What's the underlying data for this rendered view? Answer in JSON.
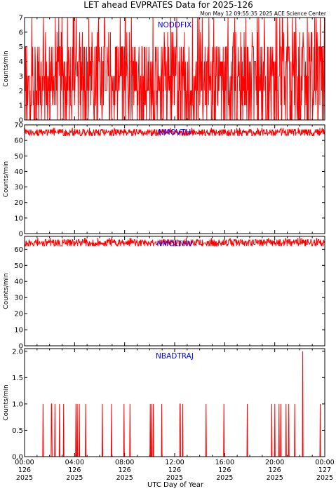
{
  "title": "LET ahead EVPRATES Data for 2025-126",
  "timestamp": "Mon May 12 09:55:35 2025 ACE Science Center",
  "xlabel": "UTC Day of Year",
  "x_ticks": [
    {
      "time": "00:00",
      "doy": "126",
      "year": "2025"
    },
    {
      "time": "04:00",
      "doy": "126",
      "year": "2025"
    },
    {
      "time": "08:00",
      "doy": "126",
      "year": "2025"
    },
    {
      "time": "12:00",
      "doy": "126",
      "year": "2025"
    },
    {
      "time": "16:00",
      "doy": "126",
      "year": "2025"
    },
    {
      "time": "20:00",
      "doy": "126",
      "year": "2025"
    },
    {
      "time": "00:00",
      "doy": "127",
      "year": "2025"
    }
  ],
  "colors": {
    "data": "#ff0000",
    "label": "#0000ff",
    "axis": "#000000"
  },
  "chart_data": [
    {
      "type": "line",
      "series": [
        {
          "name": "NODDFIX",
          "base": 2,
          "noise_max": 3,
          "spike_max": 7,
          "spike_prob": 0.22,
          "integer": true
        }
      ],
      "xlim": [
        "126 00:00",
        "127 00:00"
      ],
      "ylim": [
        0,
        7
      ],
      "ylabel": "Counts/min",
      "y_ticks": [
        0,
        1,
        2,
        3,
        4,
        5,
        6,
        7
      ],
      "y_tick_labels": [
        "0",
        "1",
        "2",
        "3",
        "4",
        "5",
        "6",
        "7"
      ]
    },
    {
      "type": "line",
      "series": [
        {
          "name": "NMOVTH",
          "base": 65,
          "noise_max": 2,
          "spike_max": 68,
          "spike_prob": 0.05,
          "integer": true
        }
      ],
      "xlim": [
        "126 00:00",
        "127 00:00"
      ],
      "ylim": [
        0,
        70
      ],
      "ylabel": "Counts/min",
      "y_ticks": [
        0,
        10,
        20,
        30,
        40,
        50,
        60,
        70
      ],
      "y_tick_labels": [
        "0",
        "10",
        "20",
        "30",
        "40",
        "50",
        "60",
        "70"
      ]
    },
    {
      "type": "line",
      "series": [
        {
          "name": "NMOLTHV",
          "base": 64,
          "noise_max": 2,
          "spike_max": 67,
          "spike_prob": 0.05,
          "integer": true
        }
      ],
      "xlim": [
        "126 00:00",
        "127 00:00"
      ],
      "ylim": [
        0,
        68
      ],
      "ylabel": "Counts/min",
      "y_ticks": [
        0,
        10,
        20,
        30,
        40,
        50,
        60
      ],
      "y_tick_labels": [
        "0",
        "10",
        "20",
        "30",
        "40",
        "50",
        "60"
      ]
    },
    {
      "type": "line",
      "series": [
        {
          "name": "NBADTRAJ",
          "base": 0,
          "noise_max": 0,
          "spike_max": 1,
          "spike_prob": 0.035,
          "integer": true,
          "peaks": [
            {
              "x": "126 22:15",
              "y": 2
            }
          ]
        }
      ],
      "xlim": [
        "126 00:00",
        "127 00:00"
      ],
      "ylim": [
        0,
        2.05
      ],
      "ylabel": "Counts/min",
      "y_ticks": [
        0,
        0.5,
        1.0,
        1.5,
        2.0
      ],
      "y_tick_labels": [
        "0.0",
        "0.5",
        "1.0",
        "1.5",
        "2.0"
      ]
    }
  ]
}
